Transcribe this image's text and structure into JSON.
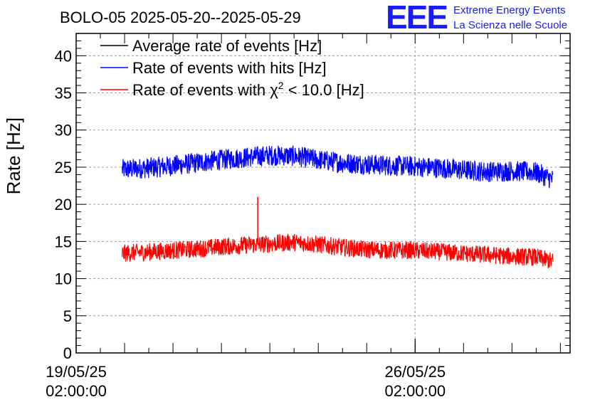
{
  "chart_data": {
    "type": "line",
    "title": "BOLO-05 2025-05-20--2025-05-29",
    "ylabel": "Rate [Hz]",
    "xlabel": "",
    "ylim": [
      0,
      43
    ],
    "yticks": [
      0,
      5,
      10,
      15,
      20,
      25,
      30,
      35,
      40
    ],
    "ytick_labels": [
      "0",
      "5",
      "10",
      "15",
      "20",
      "25",
      "30",
      "35",
      "40"
    ],
    "xlim_days": [
      0,
      10.2
    ],
    "xticks": [
      {
        "day": 0,
        "date": "19/05/25",
        "time": "02:00:00"
      },
      {
        "day": 7,
        "date": "26/05/25",
        "time": "02:00:00"
      }
    ],
    "grid": true,
    "legend_position": "top-left",
    "series": [
      {
        "name": "Average rate of events [Hz]",
        "color": "#000000",
        "x": [],
        "values": []
      },
      {
        "name": "Rate of events with hits [Hz]",
        "color": "#0000ff",
        "x": [
          0.95,
          1.5,
          2.0,
          2.5,
          3.0,
          3.5,
          4.0,
          4.5,
          5.0,
          5.5,
          6.0,
          6.5,
          7.0,
          7.5,
          8.0,
          8.5,
          9.0,
          9.5,
          9.85
        ],
        "values": [
          24.7,
          24.9,
          25.2,
          25.6,
          26.0,
          26.3,
          26.6,
          26.5,
          26.0,
          25.6,
          25.4,
          25.2,
          25.1,
          24.9,
          24.6,
          24.4,
          24.5,
          24.3,
          23.3
        ],
        "band": 1.4
      },
      {
        "name": "Rate of events with χ² < 10.0 [Hz]",
        "name_main": "Rate of events with ",
        "name_chi": "χ",
        "name_sup": "2",
        "name_rest": " < 10.0 [Hz]",
        "color": "#ff0000",
        "x": [
          0.95,
          1.5,
          2.0,
          2.5,
          3.0,
          3.5,
          4.0,
          4.5,
          5.0,
          5.5,
          6.0,
          6.5,
          7.0,
          7.5,
          8.0,
          8.5,
          9.0,
          9.5,
          9.85
        ],
        "values": [
          13.4,
          13.6,
          13.8,
          14.0,
          14.3,
          14.5,
          14.7,
          14.9,
          14.6,
          14.2,
          13.9,
          13.8,
          13.8,
          13.6,
          13.4,
          13.2,
          13.0,
          12.9,
          12.3
        ],
        "band": 1.2,
        "spike": {
          "x": 3.75,
          "value": 21.0
        }
      }
    ]
  },
  "logo": {
    "mark": "EEE",
    "line1": "Extreme Energy Events",
    "line2": "La Scienza nelle Scuole"
  }
}
